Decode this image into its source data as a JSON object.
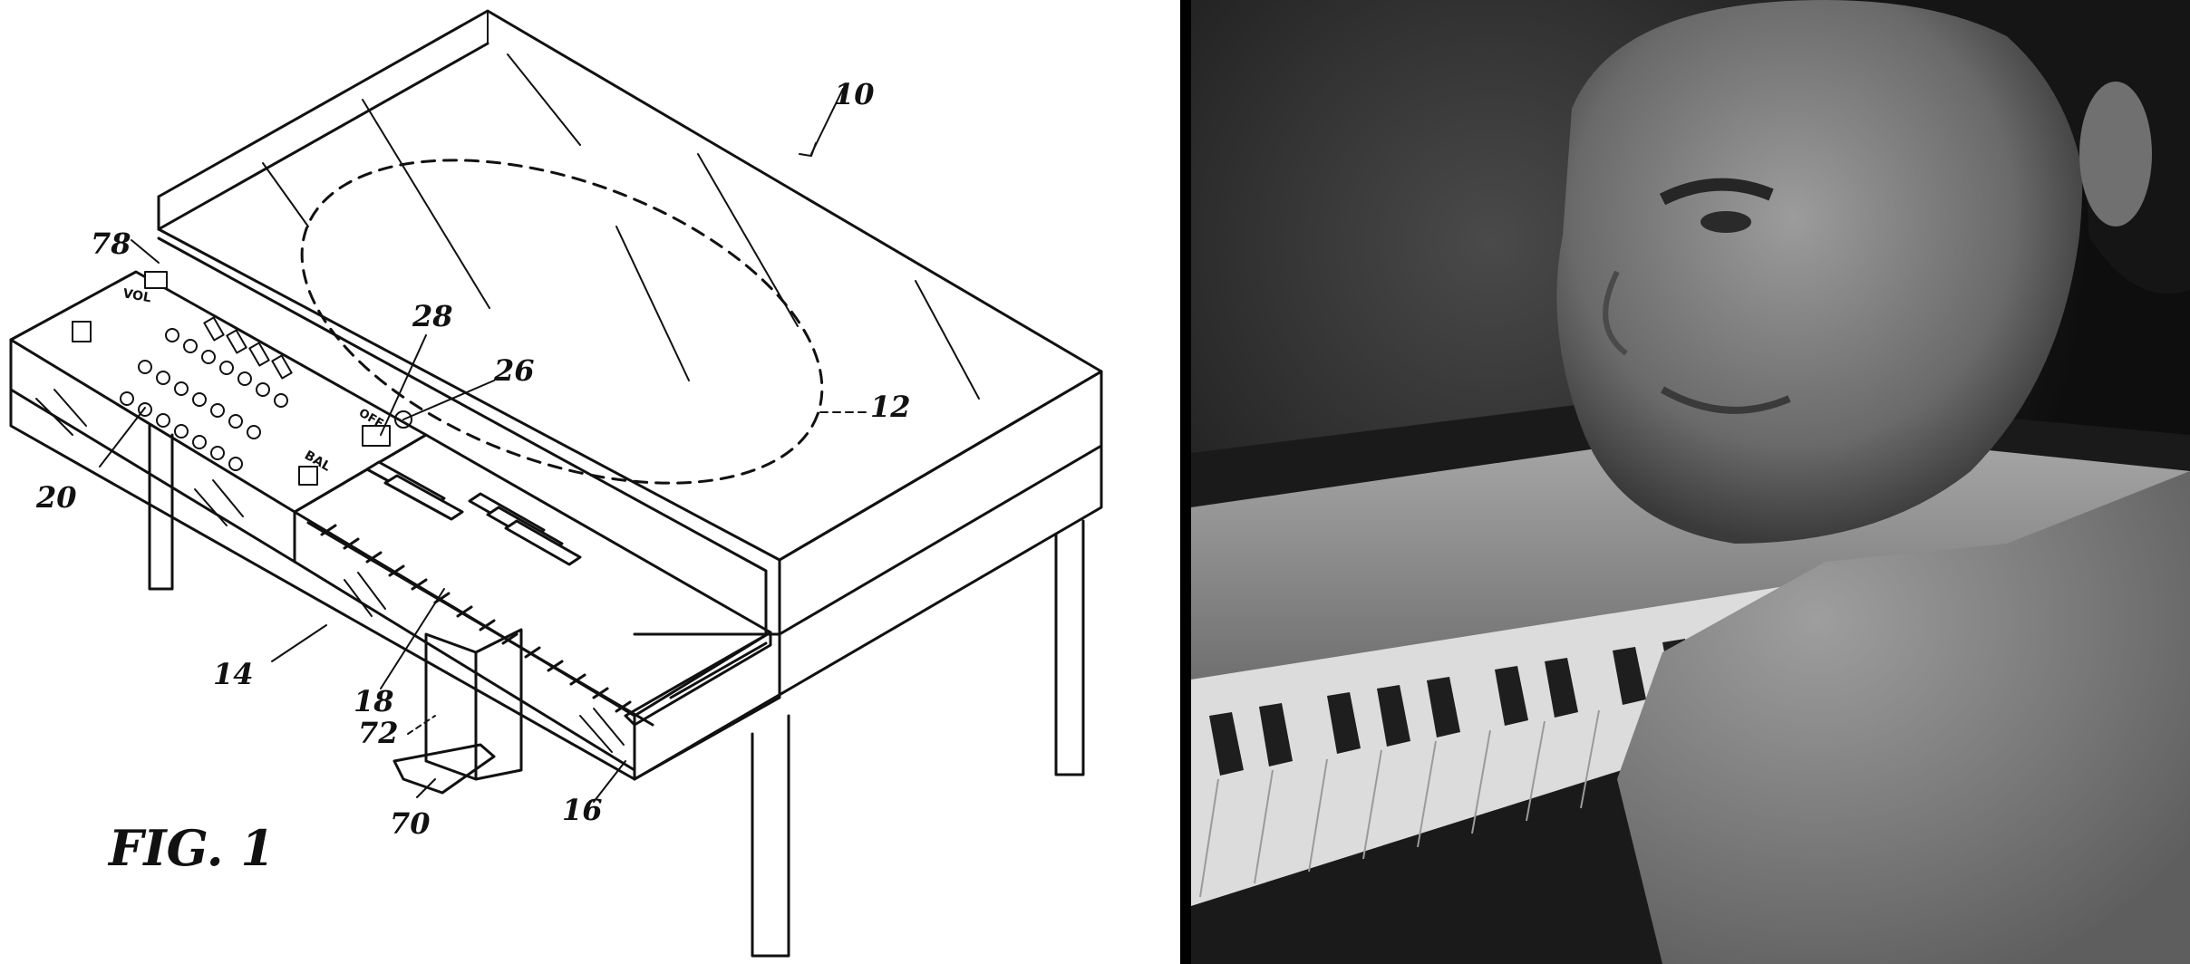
{
  "patent_figure": {
    "reference_numerals": {
      "n10": "10",
      "n12": "12",
      "n14": "14",
      "n16": "16",
      "n18": "18",
      "n20": "20",
      "n26": "26",
      "n28": "28",
      "n70": "70",
      "n72": "72",
      "n78": "78"
    },
    "panel_labels": {
      "vol": "VOL",
      "bal": "BAL",
      "off": "OFF"
    },
    "figure_caption": "FIG. 1"
  },
  "photo": {
    "description_icon": "man-at-piano-photo-icon"
  },
  "colors": {
    "line_art": "#111111",
    "paper": "#ffffff",
    "divider": "#000000"
  }
}
